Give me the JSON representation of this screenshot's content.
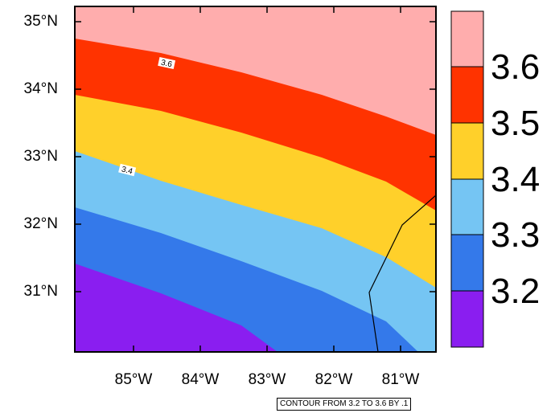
{
  "map": {
    "lat_labels": [
      "35°N",
      "34°N",
      "33°N",
      "32°N",
      "31°N"
    ],
    "lon_labels": [
      "85°W",
      "84°W",
      "83°W",
      "82°W",
      "81°W"
    ],
    "contour_labels": [
      "3.6",
      "3.4"
    ],
    "fill_colors": {
      "below_3.2": "#8a1ef0",
      "3.2-3.3": "#3479ea",
      "3.3-3.4": "#75c5f3",
      "3.4-3.5": "#ffd02a",
      "3.5-3.6": "#ff3300",
      "above_3.6": "#ffadad"
    }
  },
  "colorbar": {
    "levels": [
      "3.6",
      "3.5",
      "3.4",
      "3.3",
      "3.2"
    ],
    "colors": [
      "#ffadad",
      "#ff3300",
      "#ffd02a",
      "#75c5f3",
      "#3479ea",
      "#8a1ef0"
    ]
  },
  "footer": {
    "text": "CONTOUR FROM 3.2 TO 3.6 BY .1"
  }
}
